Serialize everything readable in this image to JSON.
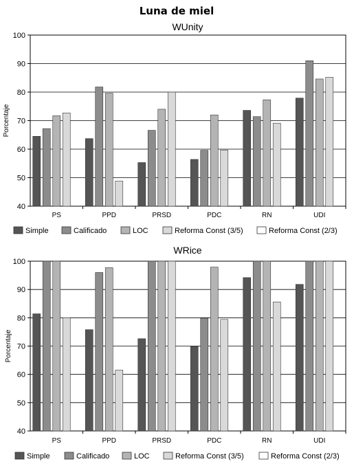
{
  "page_title": "Luna de miel",
  "chart_data": [
    {
      "type": "bar",
      "title": "WUnity",
      "xlabel": "",
      "ylabel": "Porcentaje",
      "ylim": [
        40,
        100
      ],
      "yticks": [
        40,
        50,
        60,
        70,
        80,
        90,
        100
      ],
      "categories": [
        "PS",
        "PPD",
        "PRSD",
        "PDC",
        "RN",
        "UDI"
      ],
      "legend_position": "bottom",
      "series": [
        {
          "name": "Simple",
          "color": "#555555",
          "values": [
            64.5,
            63.7,
            55.3,
            56.4,
            73.6,
            77.9
          ]
        },
        {
          "name": "Calificado",
          "color": "#8c8c8c",
          "values": [
            67.2,
            81.8,
            66.6,
            59.6,
            71.4,
            91.0
          ]
        },
        {
          "name": "LOC",
          "color": "#b4b4b4",
          "values": [
            71.7,
            79.6,
            74.0,
            72.0,
            77.3,
            84.6
          ]
        },
        {
          "name": "Reforma Const (3/5)",
          "color": "#d9d9d9",
          "values": [
            72.7,
            48.8,
            80.0,
            59.7,
            69.1,
            85.2
          ]
        },
        {
          "name": "Reforma Const (2/3)",
          "color": "#ffffff",
          "values": [
            null,
            null,
            null,
            null,
            null,
            null
          ]
        }
      ]
    },
    {
      "type": "bar",
      "title": "WRice",
      "xlabel": "",
      "ylabel": "Porcentaje",
      "ylim": [
        40,
        100
      ],
      "yticks": [
        40,
        50,
        60,
        70,
        80,
        90,
        100
      ],
      "categories": [
        "PS",
        "PPD",
        "PRSD",
        "PDC",
        "RN",
        "UDI"
      ],
      "legend_position": "bottom",
      "series": [
        {
          "name": "Simple",
          "color": "#555555",
          "values": [
            81.4,
            75.8,
            72.6,
            69.9,
            94.2,
            91.8
          ]
        },
        {
          "name": "Calificado",
          "color": "#8c8c8c",
          "values": [
            100,
            96.0,
            100,
            79.9,
            100,
            100
          ]
        },
        {
          "name": "LOC",
          "color": "#b4b4b4",
          "values": [
            100,
            97.7,
            100,
            97.9,
            100,
            100
          ]
        },
        {
          "name": "Reforma Const (3/5)",
          "color": "#d9d9d9",
          "values": [
            80.0,
            61.5,
            100,
            79.4,
            85.6,
            100
          ]
        },
        {
          "name": "Reforma Const (2/3)",
          "color": "#ffffff",
          "values": [
            null,
            null,
            null,
            null,
            null,
            null
          ]
        }
      ]
    }
  ]
}
